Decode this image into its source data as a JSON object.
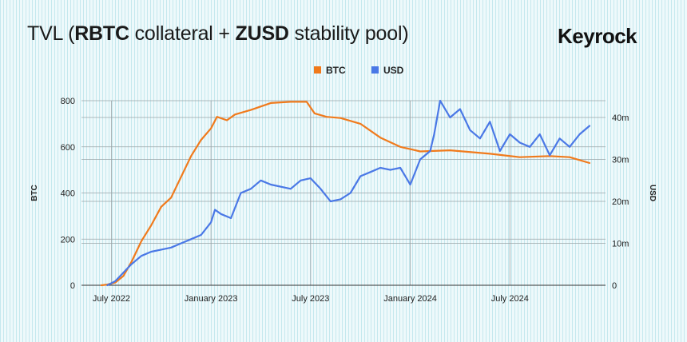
{
  "header": {
    "title_parts": [
      "TVL (",
      "RBTC",
      " collateral + ",
      "ZUSD",
      " stability pool)"
    ],
    "brand": "Keyrock"
  },
  "chart_data": {
    "type": "line",
    "title": "TVL (RBTC collateral + ZUSD stability pool)",
    "legend": [
      {
        "name": "BTC",
        "color": "#f07a1c",
        "axis": "left"
      },
      {
        "name": "USD",
        "color": "#4a78e6",
        "axis": "right"
      }
    ],
    "legend_position": "top-center",
    "grid": true,
    "x_range": [
      2022.35,
      2024.98
    ],
    "x_ticks": [
      {
        "label": "July 2022",
        "x": 2022.5
      },
      {
        "label": "January 2023",
        "x": 2023.0
      },
      {
        "label": "July 2023",
        "x": 2023.5
      },
      {
        "label": "January 2024",
        "x": 2024.0
      },
      {
        "label": "July 2024",
        "x": 2024.5
      }
    ],
    "y_left": {
      "label": "BTC",
      "min": 0,
      "max": 800,
      "ticks": [
        0,
        200,
        400,
        600,
        800
      ],
      "tick_labels": [
        "0",
        "200",
        "400",
        "600",
        "800"
      ]
    },
    "y_right": {
      "label": "USD",
      "min": 0,
      "max": 44000000,
      "ticks": [
        0,
        10000000,
        20000000,
        30000000,
        40000000
      ],
      "tick_labels": [
        "0",
        "10m",
        "20m",
        "30m",
        "40m"
      ]
    },
    "series": [
      {
        "name": "BTC",
        "axis": "left",
        "color": "#f07a1c",
        "x": [
          2022.45,
          2022.48,
          2022.52,
          2022.56,
          2022.6,
          2022.65,
          2022.7,
          2022.75,
          2022.8,
          2022.85,
          2022.9,
          2022.95,
          2023.0,
          2023.03,
          2023.08,
          2023.12,
          2023.2,
          2023.3,
          2023.4,
          2023.48,
          2023.52,
          2023.58,
          2023.65,
          2023.75,
          2023.85,
          2023.95,
          2024.0,
          2024.05,
          2024.2,
          2024.4,
          2024.55,
          2024.7,
          2024.8,
          2024.9
        ],
        "values": [
          0,
          3,
          12,
          40,
          100,
          190,
          260,
          340,
          380,
          470,
          560,
          630,
          680,
          730,
          715,
          740,
          760,
          790,
          795,
          795,
          745,
          730,
          725,
          700,
          640,
          600,
          590,
          580,
          585,
          570,
          555,
          560,
          555,
          530
        ]
      },
      {
        "name": "USD",
        "axis": "right",
        "color": "#4a78e6",
        "x": [
          2022.48,
          2022.52,
          2022.56,
          2022.6,
          2022.65,
          2022.7,
          2022.75,
          2022.8,
          2022.85,
          2022.9,
          2022.95,
          2023.0,
          2023.02,
          2023.05,
          2023.1,
          2023.15,
          2023.2,
          2023.25,
          2023.3,
          2023.4,
          2023.45,
          2023.5,
          2023.55,
          2023.6,
          2023.65,
          2023.7,
          2023.75,
          2023.8,
          2023.85,
          2023.9,
          2023.95,
          2024.0,
          2024.05,
          2024.1,
          2024.12,
          2024.15,
          2024.2,
          2024.25,
          2024.3,
          2024.35,
          2024.4,
          2024.45,
          2024.5,
          2024.55,
          2024.6,
          2024.65,
          2024.7,
          2024.75,
          2024.8,
          2024.85,
          2024.9
        ],
        "values": [
          0,
          1000000,
          3000000,
          5000000,
          7000000,
          8000000,
          8500000,
          9000000,
          10000000,
          11000000,
          12000000,
          15000000,
          18000000,
          17000000,
          16000000,
          22000000,
          23000000,
          25000000,
          24000000,
          23000000,
          25000000,
          25500000,
          23000000,
          20000000,
          20500000,
          22000000,
          26000000,
          27000000,
          28000000,
          27500000,
          28000000,
          24000000,
          30000000,
          32000000,
          36000000,
          44000000,
          40000000,
          42000000,
          37000000,
          35000000,
          39000000,
          32000000,
          36000000,
          34000000,
          33000000,
          36000000,
          31000000,
          35000000,
          33000000,
          36000000,
          38000000
        ]
      }
    ]
  }
}
